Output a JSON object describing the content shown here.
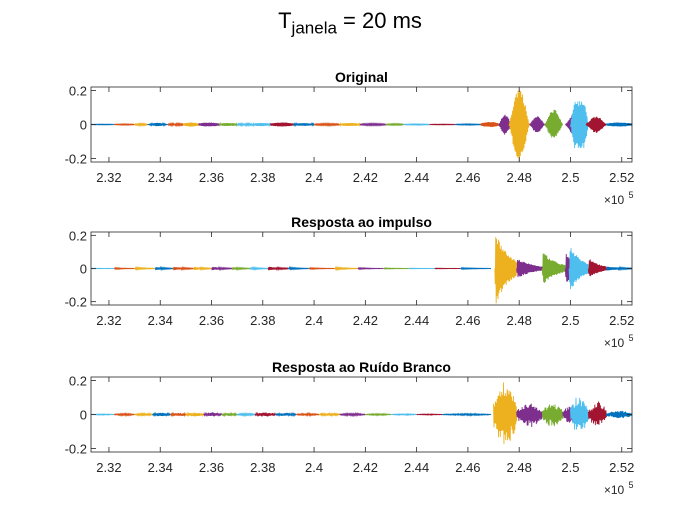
{
  "figure": {
    "title_main": "T",
    "title_sub": "janela",
    "title_rest": " = 20 ms"
  },
  "chart_data": [
    {
      "type": "line",
      "title": "Original",
      "xlabel": "",
      "ylabel": "",
      "xlim": [
        231300,
        252400
      ],
      "ylim": [
        -0.22,
        0.22
      ],
      "x_ticks": [
        2.32,
        2.34,
        2.36,
        2.38,
        2.4,
        2.42,
        2.44,
        2.46,
        2.48,
        2.5,
        2.52
      ],
      "x_tick_labels": [
        "2.32",
        "2.34",
        "2.36",
        "2.38",
        "2.4",
        "2.42",
        "2.44",
        "2.46",
        "2.48",
        "2.5",
        "2.52"
      ],
      "x_exponent_label": "×10",
      "x_exponent_power": "5",
      "y_ticks": [
        -0.2,
        0,
        0.2
      ],
      "y_tick_labels": [
        "-0.2",
        "0",
        "0.2"
      ],
      "grid": false,
      "segments": [
        {
          "start": 231300,
          "end": 232200,
          "amplitude": 0.002,
          "color": "#0072BD",
          "envelope": "flat"
        },
        {
          "start": 232200,
          "end": 233000,
          "amplitude": 0.003,
          "color": "#D95319",
          "envelope": "flat"
        },
        {
          "start": 233000,
          "end": 233500,
          "amplitude": 0.005,
          "color": "#EDB120",
          "envelope": "flat"
        },
        {
          "start": 233500,
          "end": 234300,
          "amplitude": 0.01,
          "color": "#0072BD",
          "envelope": "bell"
        },
        {
          "start": 234300,
          "end": 234900,
          "amplitude": 0.006,
          "color": "#D95319",
          "envelope": "flat"
        },
        {
          "start": 234900,
          "end": 235500,
          "amplitude": 0.012,
          "color": "#EDB120",
          "envelope": "flat"
        },
        {
          "start": 235500,
          "end": 236300,
          "amplitude": 0.012,
          "color": "#7E2F8E",
          "envelope": "flat"
        },
        {
          "start": 236300,
          "end": 237000,
          "amplitude": 0.009,
          "color": "#77AC30",
          "envelope": "flat"
        },
        {
          "start": 237000,
          "end": 237600,
          "amplitude": 0.006,
          "color": "#4DBEEE",
          "envelope": "flat"
        },
        {
          "start": 237600,
          "end": 238300,
          "amplitude": 0.01,
          "color": "#4DBEEE",
          "envelope": "flat"
        },
        {
          "start": 238300,
          "end": 239200,
          "amplitude": 0.012,
          "color": "#A2142F",
          "envelope": "flat"
        },
        {
          "start": 239200,
          "end": 240000,
          "amplitude": 0.008,
          "color": "#0072BD",
          "envelope": "flat"
        },
        {
          "start": 240000,
          "end": 241000,
          "amplitude": 0.005,
          "color": "#D95319",
          "envelope": "flat"
        },
        {
          "start": 241000,
          "end": 241800,
          "amplitude": 0.009,
          "color": "#EDB120",
          "envelope": "flat"
        },
        {
          "start": 241800,
          "end": 242800,
          "amplitude": 0.005,
          "color": "#7E2F8E",
          "envelope": "flat"
        },
        {
          "start": 242800,
          "end": 243500,
          "amplitude": 0.004,
          "color": "#77AC30",
          "envelope": "flat"
        },
        {
          "start": 243500,
          "end": 244500,
          "amplitude": 0.003,
          "color": "#4DBEEE",
          "envelope": "flat"
        },
        {
          "start": 244500,
          "end": 245500,
          "amplitude": 0.002,
          "color": "#A2142F",
          "envelope": "flat"
        },
        {
          "start": 245500,
          "end": 246500,
          "amplitude": 0.003,
          "color": "#0072BD",
          "envelope": "flat"
        },
        {
          "start": 246500,
          "end": 247200,
          "amplitude": 0.015,
          "color": "#D95319",
          "envelope": "flat"
        },
        {
          "start": 247200,
          "end": 247700,
          "amplitude": 0.06,
          "color": "#7E2F8E",
          "envelope": "bell"
        },
        {
          "start": 247600,
          "end": 248400,
          "amplitude": 0.22,
          "color": "#EDB120",
          "envelope": "bell"
        },
        {
          "start": 248400,
          "end": 249000,
          "amplitude": 0.05,
          "color": "#7E2F8E",
          "envelope": "bell"
        },
        {
          "start": 249000,
          "end": 249700,
          "amplitude": 0.09,
          "color": "#77AC30",
          "envelope": "bell"
        },
        {
          "start": 249800,
          "end": 250500,
          "amplitude": 0.06,
          "color": "#7E2F8E",
          "envelope": "bell"
        },
        {
          "start": 250000,
          "end": 250700,
          "amplitude": 0.14,
          "color": "#4DBEEE",
          "envelope": "plateau"
        },
        {
          "start": 250600,
          "end": 251400,
          "amplitude": 0.05,
          "color": "#A2142F",
          "envelope": "bell"
        },
        {
          "start": 251400,
          "end": 252400,
          "amplitude": 0.012,
          "color": "#0072BD",
          "envelope": "flat"
        }
      ]
    },
    {
      "type": "line",
      "title": "Resposta ao impulso",
      "xlabel": "",
      "ylabel": "",
      "xlim": [
        231300,
        252400
      ],
      "ylim": [
        -0.22,
        0.22
      ],
      "x_ticks": [
        2.32,
        2.34,
        2.36,
        2.38,
        2.4,
        2.42,
        2.44,
        2.46,
        2.48,
        2.5,
        2.52
      ],
      "x_tick_labels": [
        "2.32",
        "2.34",
        "2.36",
        "2.38",
        "2.4",
        "2.42",
        "2.44",
        "2.46",
        "2.48",
        "2.5",
        "2.52"
      ],
      "x_exponent_label": "×10",
      "x_exponent_power": "5",
      "y_ticks": [
        -0.2,
        0,
        0.2
      ],
      "y_tick_labels": [
        "-0.2",
        "0",
        "0.2"
      ],
      "grid": false,
      "segments": [
        {
          "start": 231300,
          "end": 232200,
          "amplitude": 0.002,
          "color": "#4DBEEE",
          "envelope": "decay"
        },
        {
          "start": 232200,
          "end": 233000,
          "amplitude": 0.004,
          "color": "#D95319",
          "envelope": "decay"
        },
        {
          "start": 233000,
          "end": 233800,
          "amplitude": 0.006,
          "color": "#EDB120",
          "envelope": "decay"
        },
        {
          "start": 233800,
          "end": 234500,
          "amplitude": 0.009,
          "color": "#0072BD",
          "envelope": "decay"
        },
        {
          "start": 234500,
          "end": 235300,
          "amplitude": 0.01,
          "color": "#D95319",
          "envelope": "decay"
        },
        {
          "start": 235300,
          "end": 236000,
          "amplitude": 0.01,
          "color": "#EDB120",
          "envelope": "decay"
        },
        {
          "start": 236000,
          "end": 236800,
          "amplitude": 0.01,
          "color": "#7E2F8E",
          "envelope": "decay"
        },
        {
          "start": 236800,
          "end": 237500,
          "amplitude": 0.008,
          "color": "#77AC30",
          "envelope": "decay"
        },
        {
          "start": 237500,
          "end": 238200,
          "amplitude": 0.007,
          "color": "#4DBEEE",
          "envelope": "decay"
        },
        {
          "start": 238200,
          "end": 239000,
          "amplitude": 0.011,
          "color": "#A2142F",
          "envelope": "decay"
        },
        {
          "start": 239000,
          "end": 239800,
          "amplitude": 0.006,
          "color": "#0072BD",
          "envelope": "decay"
        },
        {
          "start": 239800,
          "end": 240800,
          "amplitude": 0.004,
          "color": "#D95319",
          "envelope": "decay"
        },
        {
          "start": 240800,
          "end": 241700,
          "amplitude": 0.006,
          "color": "#EDB120",
          "envelope": "decay"
        },
        {
          "start": 241700,
          "end": 242700,
          "amplitude": 0.004,
          "color": "#7E2F8E",
          "envelope": "decay"
        },
        {
          "start": 242700,
          "end": 243700,
          "amplitude": 0.003,
          "color": "#77AC30",
          "envelope": "decay"
        },
        {
          "start": 243700,
          "end": 244700,
          "amplitude": 0.002,
          "color": "#4DBEEE",
          "envelope": "decay"
        },
        {
          "start": 244700,
          "end": 245700,
          "amplitude": 0.002,
          "color": "#A2142F",
          "envelope": "decay"
        },
        {
          "start": 245700,
          "end": 246900,
          "amplitude": 0.004,
          "color": "#0072BD",
          "envelope": "decay"
        },
        {
          "start": 247050,
          "end": 247900,
          "amplitude": 0.22,
          "color": "#EDB120",
          "envelope": "decay"
        },
        {
          "start": 247900,
          "end": 248900,
          "amplitude": 0.06,
          "color": "#7E2F8E",
          "envelope": "decay"
        },
        {
          "start": 248900,
          "end": 249800,
          "amplitude": 0.1,
          "color": "#77AC30",
          "envelope": "decay"
        },
        {
          "start": 249800,
          "end": 250500,
          "amplitude": 0.09,
          "color": "#7E2F8E",
          "envelope": "decay"
        },
        {
          "start": 249950,
          "end": 250700,
          "amplitude": 0.14,
          "color": "#4DBEEE",
          "envelope": "decay"
        },
        {
          "start": 250700,
          "end": 251400,
          "amplitude": 0.06,
          "color": "#A2142F",
          "envelope": "decay"
        },
        {
          "start": 251400,
          "end": 252400,
          "amplitude": 0.012,
          "color": "#0072BD",
          "envelope": "decay"
        }
      ]
    },
    {
      "type": "line",
      "title": "Resposta ao Ruído Branco",
      "xlabel": "",
      "ylabel": "",
      "xlim": [
        231300,
        252400
      ],
      "ylim": [
        -0.22,
        0.22
      ],
      "x_ticks": [
        2.32,
        2.34,
        2.36,
        2.38,
        2.4,
        2.42,
        2.44,
        2.46,
        2.48,
        2.5,
        2.52
      ],
      "x_tick_labels": [
        "2.32",
        "2.34",
        "2.36",
        "2.38",
        "2.4",
        "2.42",
        "2.44",
        "2.46",
        "2.48",
        "2.5",
        "2.52"
      ],
      "x_exponent_label": "×10",
      "x_exponent_power": "5",
      "y_ticks": [
        -0.2,
        0,
        0.2
      ],
      "y_tick_labels": [
        "-0.2",
        "0",
        "0.2"
      ],
      "grid": false,
      "segments": [
        {
          "start": 231300,
          "end": 232200,
          "amplitude": 0.003,
          "color": "#4DBEEE",
          "envelope": "noise"
        },
        {
          "start": 232200,
          "end": 233000,
          "amplitude": 0.006,
          "color": "#D95319",
          "envelope": "noise"
        },
        {
          "start": 233000,
          "end": 233700,
          "amplitude": 0.008,
          "color": "#EDB120",
          "envelope": "noise"
        },
        {
          "start": 233700,
          "end": 234400,
          "amplitude": 0.012,
          "color": "#0072BD",
          "envelope": "noise"
        },
        {
          "start": 234400,
          "end": 235000,
          "amplitude": 0.012,
          "color": "#D95319",
          "envelope": "noise"
        },
        {
          "start": 235000,
          "end": 235700,
          "amplitude": 0.014,
          "color": "#EDB120",
          "envelope": "noise"
        },
        {
          "start": 235700,
          "end": 236400,
          "amplitude": 0.014,
          "color": "#7E2F8E",
          "envelope": "noise"
        },
        {
          "start": 236400,
          "end": 237000,
          "amplitude": 0.01,
          "color": "#77AC30",
          "envelope": "noise"
        },
        {
          "start": 237000,
          "end": 237700,
          "amplitude": 0.008,
          "color": "#4DBEEE",
          "envelope": "noise"
        },
        {
          "start": 237700,
          "end": 238500,
          "amplitude": 0.014,
          "color": "#A2142F",
          "envelope": "noise"
        },
        {
          "start": 238500,
          "end": 239300,
          "amplitude": 0.01,
          "color": "#0072BD",
          "envelope": "noise"
        },
        {
          "start": 239300,
          "end": 240200,
          "amplitude": 0.006,
          "color": "#D95319",
          "envelope": "noise"
        },
        {
          "start": 240200,
          "end": 241000,
          "amplitude": 0.009,
          "color": "#EDB120",
          "envelope": "noise"
        },
        {
          "start": 241000,
          "end": 242000,
          "amplitude": 0.007,
          "color": "#7E2F8E",
          "envelope": "noise"
        },
        {
          "start": 242000,
          "end": 243000,
          "amplitude": 0.005,
          "color": "#77AC30",
          "envelope": "noise"
        },
        {
          "start": 243000,
          "end": 244000,
          "amplitude": 0.004,
          "color": "#4DBEEE",
          "envelope": "noise"
        },
        {
          "start": 244000,
          "end": 245000,
          "amplitude": 0.003,
          "color": "#A2142F",
          "envelope": "noise"
        },
        {
          "start": 245000,
          "end": 246900,
          "amplitude": 0.005,
          "color": "#0072BD",
          "envelope": "noise"
        },
        {
          "start": 247000,
          "end": 247900,
          "amplitude": 0.22,
          "color": "#EDB120",
          "envelope": "noise"
        },
        {
          "start": 247900,
          "end": 248900,
          "amplitude": 0.08,
          "color": "#7E2F8E",
          "envelope": "noise"
        },
        {
          "start": 248900,
          "end": 249700,
          "amplitude": 0.08,
          "color": "#77AC30",
          "envelope": "noise"
        },
        {
          "start": 249700,
          "end": 250300,
          "amplitude": 0.06,
          "color": "#7E2F8E",
          "envelope": "noise"
        },
        {
          "start": 250000,
          "end": 250700,
          "amplitude": 0.12,
          "color": "#4DBEEE",
          "envelope": "noise"
        },
        {
          "start": 250700,
          "end": 251400,
          "amplitude": 0.08,
          "color": "#A2142F",
          "envelope": "noise"
        },
        {
          "start": 251400,
          "end": 252400,
          "amplitude": 0.025,
          "color": "#0072BD",
          "envelope": "noise"
        }
      ]
    }
  ]
}
